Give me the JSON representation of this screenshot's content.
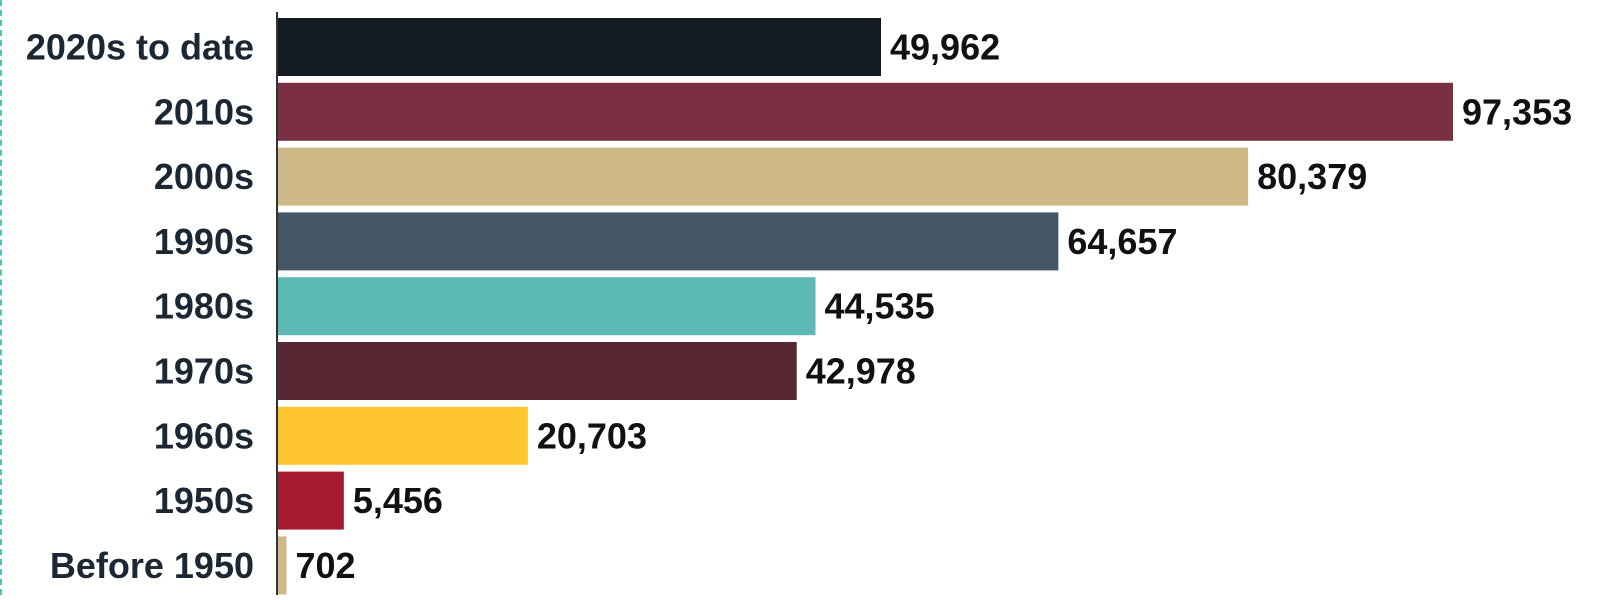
{
  "chart_data": {
    "type": "bar",
    "orientation": "horizontal",
    "title": "",
    "xlabel": "",
    "ylabel": "",
    "categories": [
      "2020s to date",
      "2010s",
      "2000s",
      "1990s",
      "1980s",
      "1970s",
      "1960s",
      "1950s",
      "Before 1950"
    ],
    "values": [
      49962,
      97353,
      80379,
      64657,
      44535,
      42978,
      20703,
      5456,
      702
    ],
    "value_labels": [
      "49,962",
      "97,353",
      "80,379",
      "64,657",
      "44,535",
      "42,978",
      "20,703",
      "5,456",
      "702"
    ],
    "colors": [
      "#131a21",
      "#7a2f42",
      "#cfb988",
      "#425664",
      "#5db9b6",
      "#572833",
      "#ffc52e",
      "#a61b2f",
      "#cfb988"
    ],
    "xlim": [
      0,
      97353
    ],
    "grid": false,
    "legend": "none"
  }
}
